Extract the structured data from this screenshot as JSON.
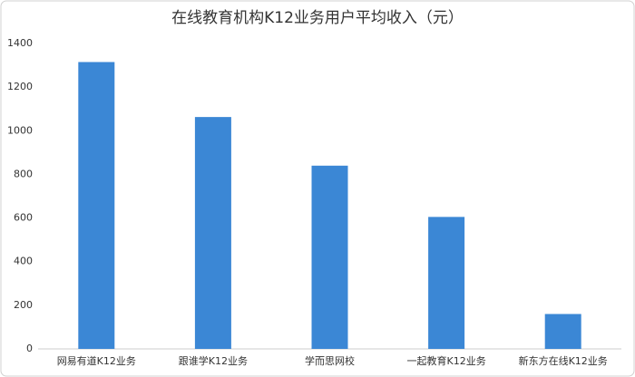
{
  "chart_data": {
    "type": "bar",
    "title": "在线教育机构K12业务用户平均收入（元）",
    "categories": [
      "网易有道K12业务",
      "跟谁学K12业务",
      "学而思网校",
      "一起教育K12业务",
      "新东方在线K12业务"
    ],
    "values": [
      1315,
      1063,
      840,
      605,
      160
    ],
    "color": "#3b87d5",
    "ylim": [
      0,
      1400
    ],
    "yticks": [
      0,
      200,
      400,
      600,
      800,
      1000,
      1200,
      1400
    ],
    "grid": false
  }
}
